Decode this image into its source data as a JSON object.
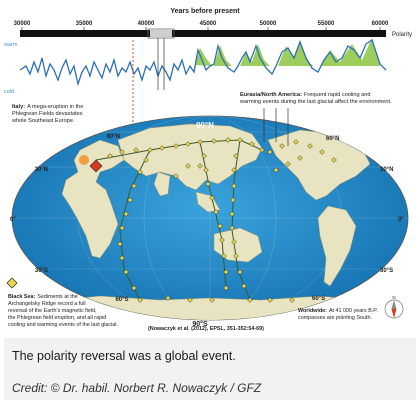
{
  "timeline": {
    "title": "Years before present",
    "tick_labels": [
      "30000",
      "35000",
      "40000",
      "45000",
      "50000",
      "55000",
      "60000"
    ],
    "polarity_label": "Polarity",
    "warm_label": "warm",
    "cold_label": "cold"
  },
  "map": {
    "lat_labels": [
      "90°N",
      "60°N",
      "30°N",
      "0°",
      "30°S",
      "60°S",
      "90°S",
      "60°N",
      "30°N",
      "0°",
      "30°S",
      "60°S"
    ],
    "compass_label": "N",
    "citation": "(Nowaczyk et al. (2012), EPSL, 351-352:54-69)"
  },
  "annotations": {
    "italy_title": "Italy:",
    "italy_text_1": "A mega-eruption in the",
    "italy_text_2": "Phlegrean Fields devastates",
    "italy_text_3": "whole Southeast Europe.",
    "eurasia_title": "Eurasia/North America:",
    "eurasia_text_1": "Frequent rapid cooling and",
    "eurasia_text_2": "warming events during the last glacial affect the environment.",
    "blacksea_title": "Black Sea:",
    "blacksea_text_1": "Sediments at the",
    "blacksea_text_2": "Archangelsky Ridge record a full",
    "blacksea_text_3": "reversal of the Earth's magnetic field,",
    "blacksea_text_4": "the Phlegrean field eruption, and all rapid",
    "blacksea_text_5": "cooling and warming events of the last glacial.",
    "worldwide_title": "Worldwide:",
    "worldwide_text_1": "At 41 000 years B.P.",
    "worldwide_text_2": "compasses are pointing South."
  },
  "caption": {
    "text": "The polarity reversal was a global event.",
    "credit": "Credit: © Dr. habil. Norbert R. Nowaczyk / GFZ"
  },
  "colors": {
    "ocean": "#1d86c9",
    "land": "#e8e3c0",
    "curve": "#2a6fb5",
    "warm_fill": "#8cc63f",
    "marker": "#e8d94a",
    "highlight_marker": "#d63a1e"
  }
}
